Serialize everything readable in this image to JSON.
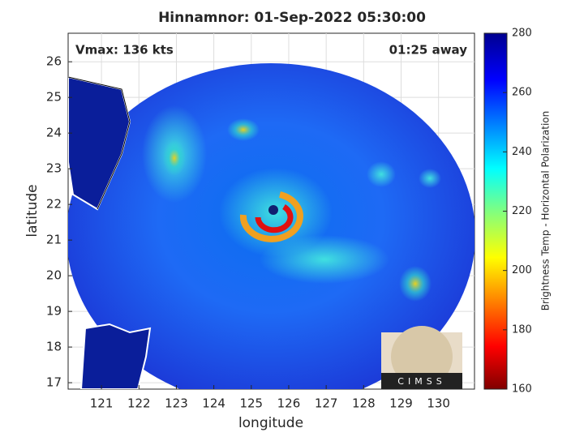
{
  "map": {
    "title": "Hinnamnor: 01-Sep-2022 05:30:00",
    "vmax_label": "Vmax: 136 kts",
    "time_label": "01:25 away",
    "x_axis": {
      "label": "longitude",
      "lim": [
        120.11,
        130.96
      ],
      "ticks": [
        121,
        122,
        123,
        124,
        125,
        126,
        127,
        128,
        129,
        130
      ]
    },
    "y_axis": {
      "label": "latitude",
      "lim": [
        16.82,
        26.8
      ],
      "ticks": [
        17,
        18,
        19,
        20,
        21,
        22,
        23,
        24,
        25,
        26
      ]
    },
    "colorbar": {
      "label": "Brightness Temp - Horizontal Polarization",
      "lim": [
        160,
        280
      ],
      "ticks": [
        160,
        180,
        200,
        220,
        240,
        260,
        280
      ]
    },
    "logo": "CIMSS"
  }
}
